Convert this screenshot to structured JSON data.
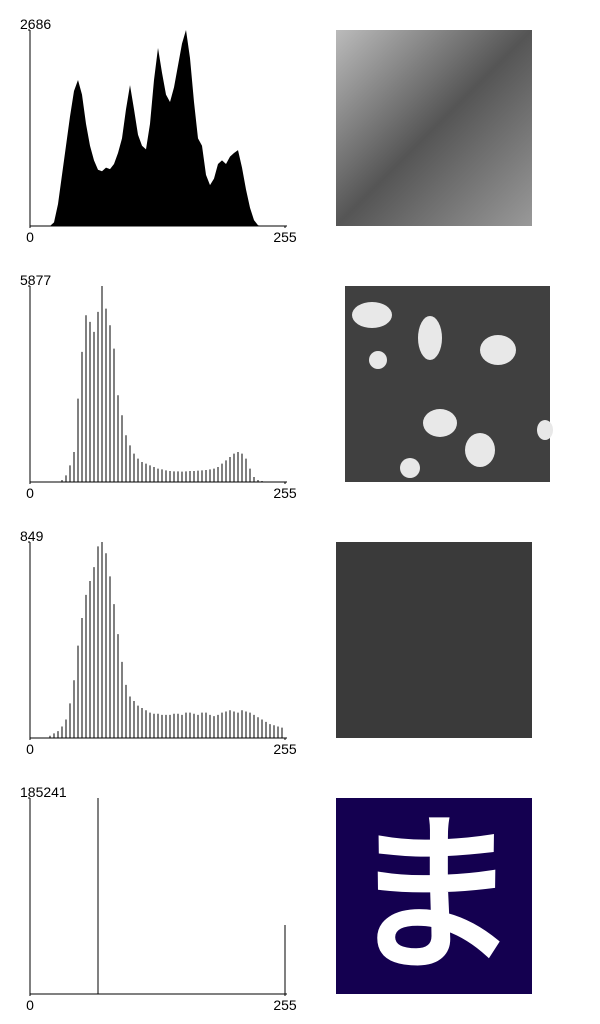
{
  "chart_data": [
    {
      "type": "area",
      "color": "#000000",
      "xlim": [
        0,
        255
      ],
      "ylim": [
        0,
        2686
      ],
      "xticks": [
        0,
        255
      ],
      "yticks": [
        2686
      ],
      "x": [
        0,
        4,
        8,
        12,
        16,
        20,
        24,
        28,
        32,
        36,
        40,
        44,
        48,
        52,
        56,
        60,
        64,
        68,
        72,
        76,
        80,
        84,
        88,
        92,
        96,
        100,
        104,
        108,
        112,
        116,
        120,
        124,
        128,
        132,
        136,
        140,
        144,
        148,
        152,
        156,
        160,
        164,
        168,
        172,
        176,
        180,
        184,
        188,
        192,
        196,
        200,
        204,
        208,
        212,
        216,
        220,
        224,
        228,
        232,
        236,
        240,
        244,
        248,
        252
      ],
      "values": [
        0,
        0,
        0,
        0,
        0,
        0,
        50,
        300,
        700,
        1100,
        1500,
        1850,
        2000,
        1800,
        1400,
        1100,
        900,
        770,
        750,
        800,
        780,
        850,
        1000,
        1200,
        1600,
        1930,
        1600,
        1250,
        1100,
        1050,
        1400,
        2000,
        2440,
        2100,
        1800,
        1700,
        1900,
        2200,
        2500,
        2686,
        2300,
        1700,
        1200,
        1100,
        700,
        560,
        650,
        850,
        900,
        850,
        950,
        1000,
        1040,
        800,
        500,
        250,
        80,
        10,
        0,
        0,
        0,
        0,
        0,
        0
      ]
    },
    {
      "type": "bar",
      "color": "#000000",
      "xlim": [
        0,
        255
      ],
      "ylim": [
        0,
        5877
      ],
      "xticks": [
        0,
        255
      ],
      "yticks": [
        5877
      ],
      "x": [
        32,
        36,
        40,
        44,
        48,
        52,
        56,
        60,
        64,
        68,
        72,
        76,
        80,
        84,
        88,
        92,
        96,
        100,
        104,
        108,
        112,
        116,
        120,
        124,
        128,
        132,
        136,
        140,
        144,
        148,
        152,
        156,
        160,
        164,
        168,
        172,
        176,
        180,
        184,
        188,
        192,
        196,
        200,
        204,
        208,
        212,
        216,
        220,
        224,
        228,
        232,
        236
      ],
      "values": [
        60,
        200,
        500,
        900,
        2500,
        3900,
        5000,
        4800,
        4500,
        5100,
        5877,
        5200,
        4700,
        4000,
        2600,
        2000,
        1400,
        1100,
        850,
        700,
        600,
        550,
        500,
        450,
        400,
        380,
        350,
        330,
        320,
        320,
        310,
        320,
        330,
        330,
        340,
        350,
        360,
        380,
        400,
        450,
        550,
        650,
        750,
        850,
        900,
        850,
        700,
        400,
        150,
        60,
        30,
        10
      ]
    },
    {
      "type": "bar",
      "color": "#000000",
      "xlim": [
        0,
        255
      ],
      "ylim": [
        0,
        849
      ],
      "xticks": [
        0,
        255
      ],
      "yticks": [
        849
      ],
      "x": [
        20,
        24,
        28,
        32,
        36,
        40,
        44,
        48,
        52,
        56,
        60,
        64,
        68,
        72,
        76,
        80,
        84,
        88,
        92,
        96,
        100,
        104,
        108,
        112,
        116,
        120,
        124,
        128,
        132,
        136,
        140,
        144,
        148,
        152,
        156,
        160,
        164,
        168,
        172,
        176,
        180,
        184,
        188,
        192,
        196,
        200,
        204,
        208,
        212,
        216,
        220,
        224,
        228,
        232,
        236,
        240,
        244,
        248,
        252
      ],
      "values": [
        10,
        20,
        30,
        50,
        80,
        150,
        250,
        400,
        520,
        620,
        680,
        740,
        830,
        849,
        800,
        700,
        580,
        450,
        330,
        230,
        180,
        160,
        140,
        130,
        120,
        110,
        105,
        105,
        100,
        100,
        100,
        105,
        105,
        100,
        110,
        110,
        105,
        100,
        110,
        110,
        100,
        95,
        100,
        110,
        115,
        120,
        115,
        110,
        120,
        115,
        110,
        100,
        90,
        80,
        70,
        60,
        55,
        50,
        45
      ]
    },
    {
      "type": "bar",
      "color": "#000000",
      "xlim": [
        0,
        255
      ],
      "ylim": [
        0,
        185241
      ],
      "xticks": [
        0,
        255
      ],
      "yticks": [
        185241
      ],
      "x": [
        68,
        255
      ],
      "values": [
        185241,
        65200
      ]
    }
  ],
  "images": {
    "glyph": "ま"
  }
}
